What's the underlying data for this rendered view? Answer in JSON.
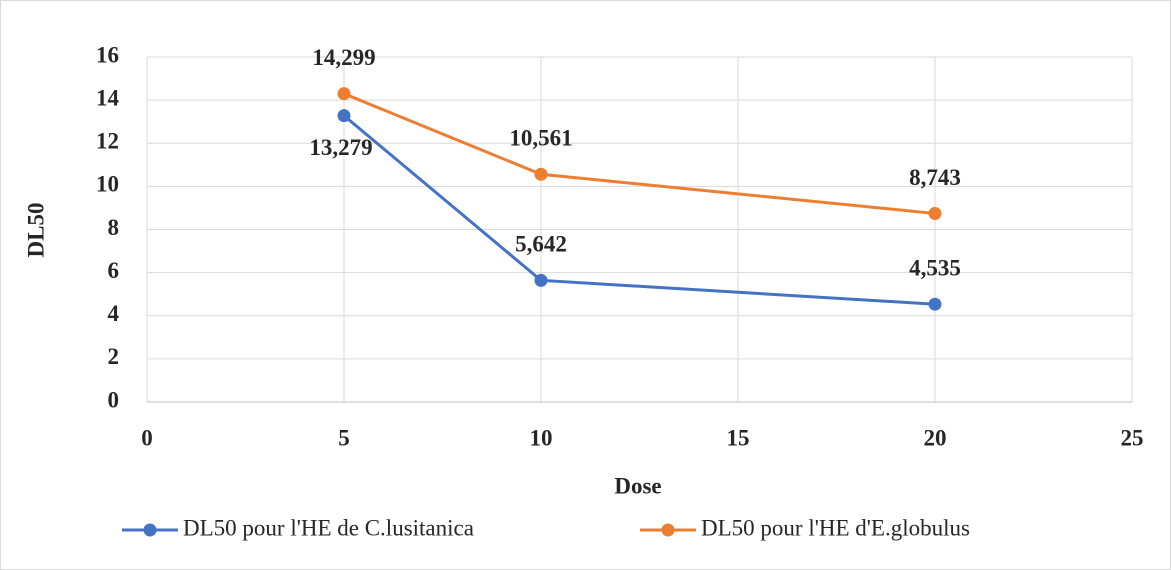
{
  "chart_data": {
    "type": "line",
    "x_label": "Dose",
    "y_label": "DL50",
    "x": [
      5,
      10,
      20
    ],
    "series": [
      {
        "name": "DL50 pour l'HE de C.lusitanica",
        "color": "#4472c4",
        "values": [
          13.279,
          5.642,
          4.535
        ],
        "value_labels": [
          "13,279",
          "5,642",
          "4,535"
        ]
      },
      {
        "name": "DL50 pour l'HE d'E.globulus",
        "color": "#ed7d31",
        "values": [
          14.299,
          10.561,
          8.743
        ],
        "value_labels": [
          "14,299",
          "10,561",
          "8,743"
        ]
      }
    ],
    "xlim": [
      0,
      25
    ],
    "xticks": [
      0,
      5,
      10,
      15,
      20,
      25
    ],
    "ylim": [
      0,
      16
    ],
    "yticks": [
      0,
      2,
      4,
      6,
      8,
      10,
      12,
      14,
      16
    ],
    "grid": true,
    "legend": "bottom"
  }
}
